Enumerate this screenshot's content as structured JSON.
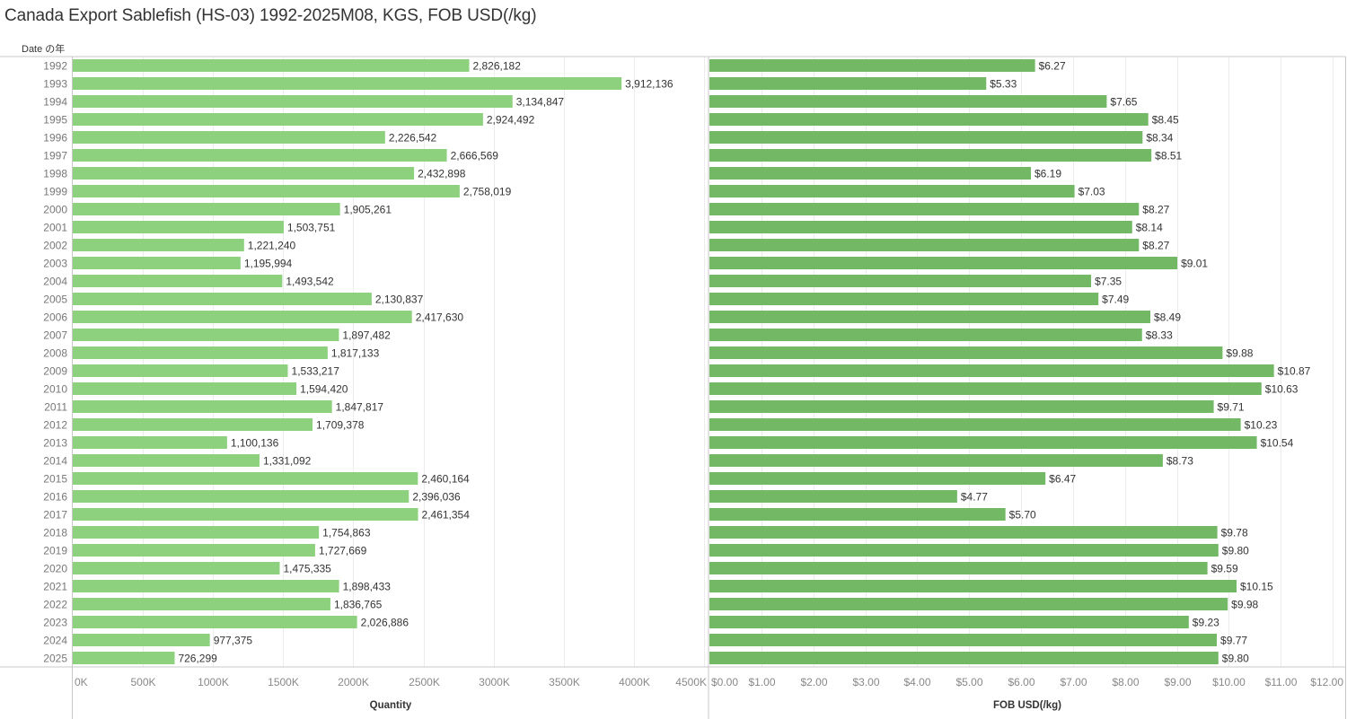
{
  "title": "Canada Export Sablefish (HS-03) 1992-2025M08, KGS, FOB USD(/kg)",
  "row_header": "Date の年",
  "colors": {
    "quantity_bar": "#8dd17e",
    "price_bar": "#72b865",
    "gridline": "#ececec",
    "axis_line": "#c8c8c8"
  },
  "chart_data": [
    {
      "type": "bar",
      "orientation": "horizontal",
      "title": "",
      "xlabel": "Quantity",
      "ylabel": "Date の年",
      "xlim": [
        0,
        4500000
      ],
      "x_ticks": [
        0,
        500000,
        1000000,
        1500000,
        2000000,
        2500000,
        3000000,
        3500000,
        4000000,
        4500000
      ],
      "x_tick_labels": [
        "0K",
        "500K",
        "1000K",
        "1500K",
        "2000K",
        "2500K",
        "3000K",
        "3500K",
        "4000K",
        "4500K"
      ],
      "grid": true,
      "categories": [
        "1992",
        "1993",
        "1994",
        "1995",
        "1996",
        "1997",
        "1998",
        "1999",
        "2000",
        "2001",
        "2002",
        "2003",
        "2004",
        "2005",
        "2006",
        "2007",
        "2008",
        "2009",
        "2010",
        "2011",
        "2012",
        "2013",
        "2014",
        "2015",
        "2016",
        "2017",
        "2018",
        "2019",
        "2020",
        "2021",
        "2022",
        "2023",
        "2024",
        "2025"
      ],
      "values": [
        2826182,
        3912136,
        3134847,
        2924492,
        2226542,
        2666569,
        2432898,
        2758019,
        1905261,
        1503751,
        1221240,
        1195994,
        1493542,
        2130837,
        2417630,
        1897482,
        1817133,
        1533217,
        1594420,
        1847817,
        1709378,
        1100136,
        1331092,
        2460164,
        2396036,
        2461354,
        1754863,
        1727669,
        1475335,
        1898433,
        1836765,
        2026886,
        977375,
        726299
      ],
      "data_labels": [
        "2,826,182",
        "3,912,136",
        "3,134,847",
        "2,924,492",
        "2,226,542",
        "2,666,569",
        "2,432,898",
        "2,758,019",
        "1,905,261",
        "1,503,751",
        "1,221,240",
        "1,195,994",
        "1,493,542",
        "2,130,837",
        "2,417,630",
        "1,897,482",
        "1,817,133",
        "1,533,217",
        "1,594,420",
        "1,847,817",
        "1,709,378",
        "1,100,136",
        "1,331,092",
        "2,460,164",
        "2,396,036",
        "2,461,354",
        "1,754,863",
        "1,727,669",
        "1,475,335",
        "1,898,433",
        "1,836,765",
        "2,026,886",
        "977,375",
        "726,299"
      ]
    },
    {
      "type": "bar",
      "orientation": "horizontal",
      "title": "",
      "xlabel": "FOB USD(/kg)",
      "ylabel": "Date の年",
      "xlim": [
        0,
        12
      ],
      "x_ticks": [
        0,
        1,
        2,
        3,
        4,
        5,
        6,
        7,
        8,
        9,
        10,
        11,
        12
      ],
      "x_tick_labels": [
        "$0.00",
        "$1.00",
        "$2.00",
        "$3.00",
        "$4.00",
        "$5.00",
        "$6.00",
        "$7.00",
        "$8.00",
        "$9.00",
        "$10.00",
        "$11.00",
        "$12.00"
      ],
      "grid": true,
      "categories": [
        "1992",
        "1993",
        "1994",
        "1995",
        "1996",
        "1997",
        "1998",
        "1999",
        "2000",
        "2001",
        "2002",
        "2003",
        "2004",
        "2005",
        "2006",
        "2007",
        "2008",
        "2009",
        "2010",
        "2011",
        "2012",
        "2013",
        "2014",
        "2015",
        "2016",
        "2017",
        "2018",
        "2019",
        "2020",
        "2021",
        "2022",
        "2023",
        "2024",
        "2025"
      ],
      "values": [
        6.27,
        5.33,
        7.65,
        8.45,
        8.34,
        8.51,
        6.19,
        7.03,
        8.27,
        8.14,
        8.27,
        9.01,
        7.35,
        7.49,
        8.49,
        8.33,
        9.88,
        10.87,
        10.63,
        9.71,
        10.23,
        10.54,
        8.73,
        6.47,
        4.77,
        5.7,
        9.78,
        9.8,
        9.59,
        10.15,
        9.98,
        9.23,
        9.77,
        9.8
      ],
      "data_labels": [
        "$6.27",
        "$5.33",
        "$7.65",
        "$8.45",
        "$8.34",
        "$8.51",
        "$6.19",
        "$7.03",
        "$8.27",
        "$8.14",
        "$8.27",
        "$9.01",
        "$7.35",
        "$7.49",
        "$8.49",
        "$8.33",
        "$9.88",
        "$10.87",
        "$10.63",
        "$9.71",
        "$10.23",
        "$10.54",
        "$8.73",
        "$6.47",
        "$4.77",
        "$5.70",
        "$9.78",
        "$9.80",
        "$9.59",
        "$10.15",
        "$9.98",
        "$9.23",
        "$9.77",
        "$9.80"
      ]
    }
  ]
}
